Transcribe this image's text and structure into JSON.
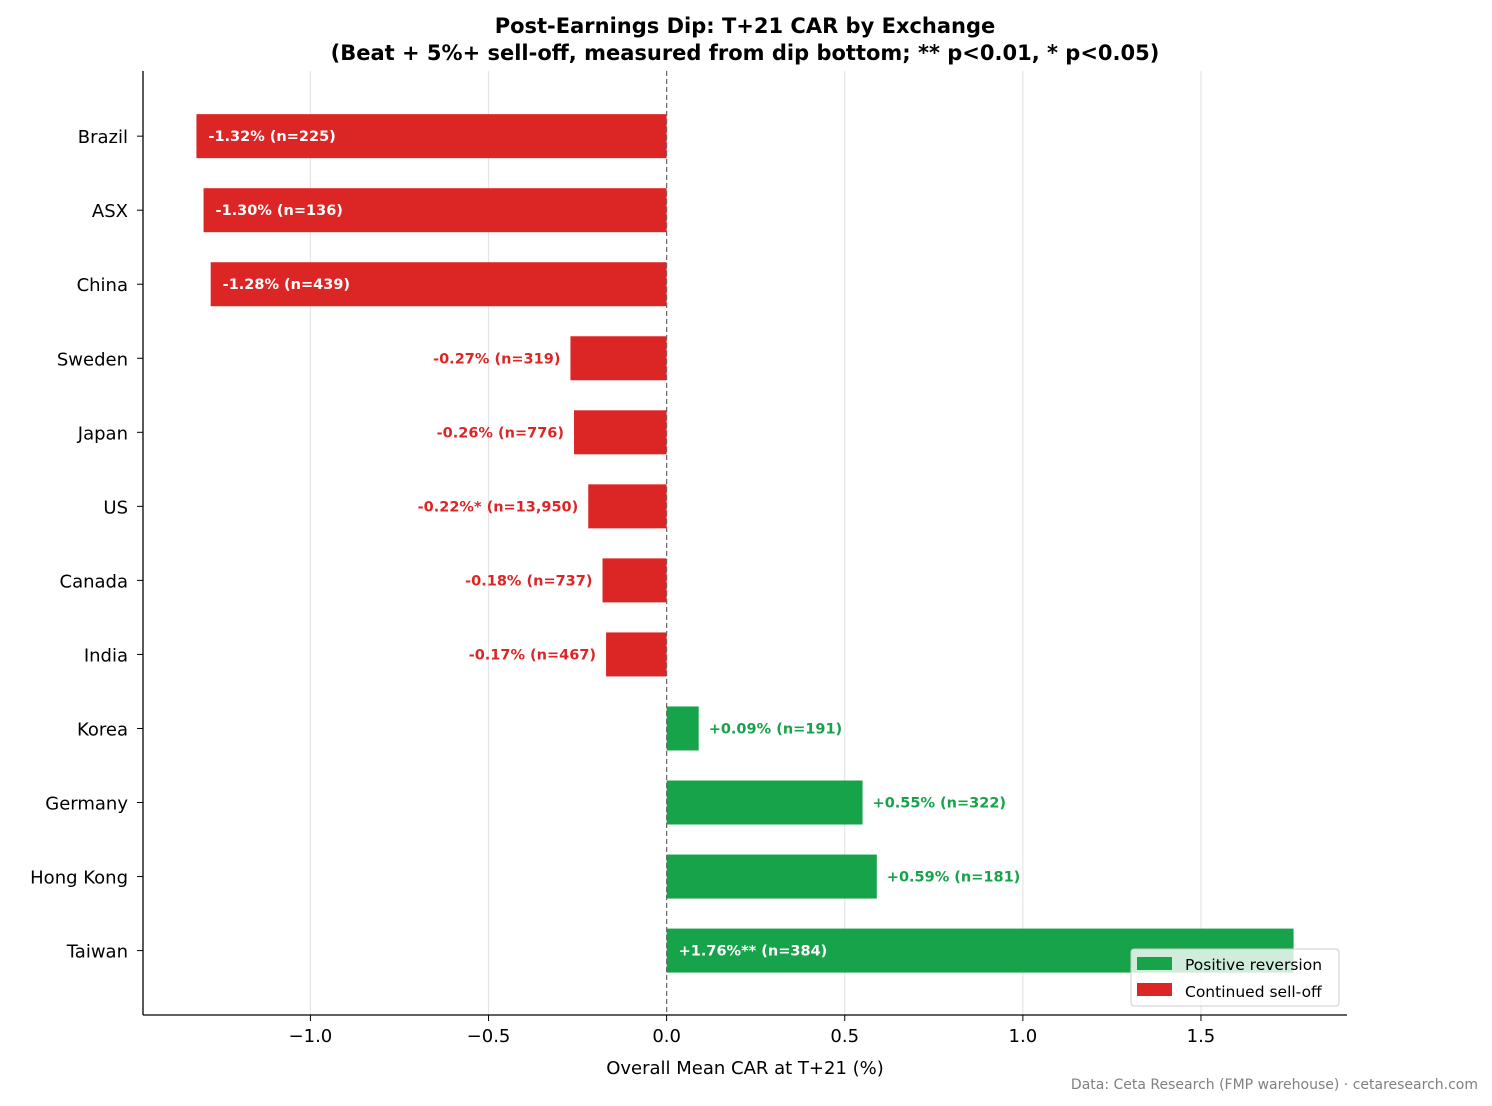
{
  "chart_data": {
    "type": "bar",
    "orientation": "horizontal",
    "title": "Post-Earnings Dip: T+21 CAR by Exchange",
    "subtitle": "(Beat + 5%+ sell-off, measured from dip bottom; ** p<0.01, * p<0.05)",
    "xlabel": "Overall Mean CAR at T+21 (%)",
    "ylabel": "",
    "xlim": [
      -1.47,
      1.91
    ],
    "xticks": [
      -1.0,
      -0.5,
      0.0,
      0.5,
      1.0,
      1.5
    ],
    "xtick_labels": [
      "−1.0",
      "−0.5",
      "0.0",
      "0.5",
      "1.0",
      "1.5"
    ],
    "grid": "vertical",
    "reference_line": 0.0,
    "categories": [
      "Brazil",
      "ASX",
      "China",
      "Sweden",
      "Japan",
      "US",
      "Canada",
      "India",
      "Korea",
      "Germany",
      "Hong Kong",
      "Taiwan"
    ],
    "values": [
      -1.32,
      -1.3,
      -1.28,
      -0.27,
      -0.26,
      -0.22,
      -0.18,
      -0.17,
      0.09,
      0.55,
      0.59,
      1.76
    ],
    "data_labels": [
      "-1.32%  (n=225)",
      "-1.30%  (n=136)",
      "-1.28%  (n=439)",
      "-0.27%  (n=319)",
      "-0.26%  (n=776)",
      "-0.22%*  (n=13,950)",
      "-0.18%  (n=737)",
      "-0.17%  (n=467)",
      "+0.09%  (n=191)",
      "+0.55%  (n=322)",
      "+0.59%  (n=181)",
      "+1.76%**  (n=384)"
    ],
    "legend": {
      "placement": "lower-right",
      "entries": [
        {
          "name": "Positive reversion",
          "color": "#16a34a"
        },
        {
          "name": "Continued sell-off",
          "color": "#dc2626"
        }
      ]
    },
    "colors": {
      "positive": "#16a34a",
      "negative": "#dc2626"
    }
  },
  "footer": {
    "source": "Data: Ceta Research (FMP warehouse) · cetaresearch.com"
  }
}
